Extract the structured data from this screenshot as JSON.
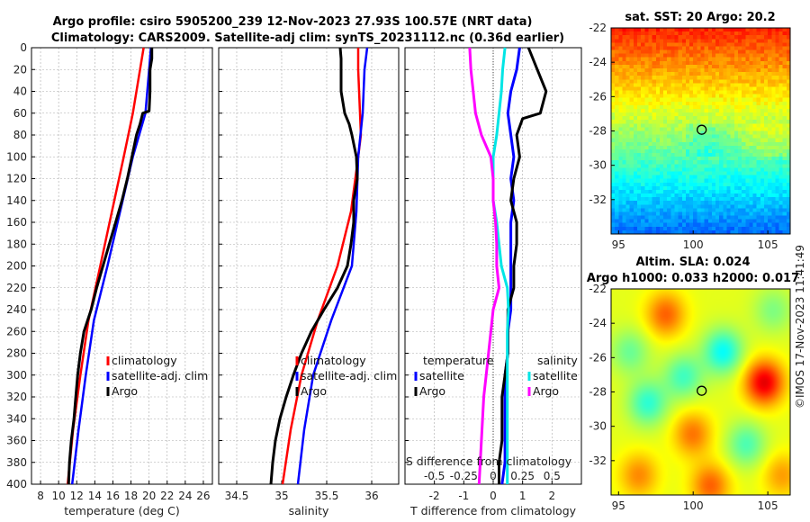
{
  "header": {
    "line1": "Argo profile: csiro 5905200_239 12-Nov-2023 27.93S 100.57E (NRT data)",
    "line2": "Climatology: CARS2009. Satellite-adj clim: synTS_20231112.nc (0.36d earlier)"
  },
  "colors": {
    "climatology": "#ff0000",
    "satellite": "#0000ff",
    "argo": "#000000",
    "s_satellite": "#00e5e5",
    "s_argo": "#ff00ff"
  },
  "chart_data": [
    {
      "type": "line",
      "id": "temperature",
      "xlabel": "temperature (deg C)",
      "ylabel": "",
      "xlim": [
        7,
        27
      ],
      "ylim": [
        400,
        0
      ],
      "xticks": [
        8,
        10,
        12,
        14,
        16,
        18,
        20,
        22,
        24,
        26
      ],
      "yticks": [
        0,
        20,
        40,
        60,
        80,
        100,
        120,
        140,
        160,
        180,
        200,
        220,
        240,
        260,
        280,
        300,
        320,
        340,
        360,
        380,
        400
      ],
      "grid": true,
      "legend": [
        "climatology",
        "satellite-adj. clim",
        "Argo"
      ],
      "series": [
        {
          "name": "climatology",
          "depth": [
            0,
            20,
            60,
            100,
            150,
            200,
            250,
            300,
            350,
            400
          ],
          "values": [
            19.4,
            19.0,
            18.2,
            17.2,
            15.9,
            14.6,
            13.3,
            12.4,
            11.6,
            11.0
          ]
        },
        {
          "name": "satellite-adj. clim",
          "depth": [
            0,
            20,
            60,
            100,
            150,
            200,
            250,
            300,
            350,
            400
          ],
          "values": [
            20.2,
            20.0,
            19.6,
            18.2,
            16.8,
            15.4,
            13.9,
            13.0,
            12.2,
            11.5
          ]
        },
        {
          "name": "Argo",
          "depth": [
            0,
            10,
            20,
            40,
            58,
            60,
            70,
            80,
            100,
            120,
            140,
            160,
            180,
            200,
            220,
            240,
            250,
            260,
            280,
            300,
            320,
            340,
            360,
            380,
            400
          ],
          "values": [
            20.3,
            20.3,
            20.1,
            20.1,
            20.0,
            19.3,
            19.0,
            18.6,
            18.1,
            17.6,
            17.0,
            16.3,
            15.6,
            14.9,
            14.2,
            13.6,
            13.2,
            12.8,
            12.4,
            12.1,
            11.9,
            11.7,
            11.4,
            11.2,
            11.1
          ]
        }
      ]
    },
    {
      "type": "line",
      "id": "salinity",
      "xlabel": "salinity",
      "ylabel": "",
      "xlim": [
        34.3,
        36.3
      ],
      "ylim": [
        400,
        0
      ],
      "xticks": [
        "34.5",
        "35",
        "35.5",
        "36"
      ],
      "xtick_values": [
        34.5,
        35,
        35.5,
        36
      ],
      "grid": true,
      "legend": [
        "climatology",
        "satellite-adj. clim",
        "Argo"
      ],
      "series": [
        {
          "name": "climatology",
          "depth": [
            0,
            20,
            60,
            80,
            100,
            150,
            200,
            250,
            300,
            350,
            400
          ],
          "values": [
            35.85,
            35.85,
            35.87,
            35.88,
            35.85,
            35.77,
            35.62,
            35.4,
            35.22,
            35.1,
            35.01
          ]
        },
        {
          "name": "satellite-adj. clim",
          "depth": [
            0,
            20,
            60,
            100,
            150,
            200,
            250,
            300,
            350,
            400
          ],
          "values": [
            35.95,
            35.92,
            35.9,
            35.85,
            35.83,
            35.78,
            35.55,
            35.35,
            35.25,
            35.18
          ]
        },
        {
          "name": "Argo",
          "depth": [
            0,
            10,
            20,
            40,
            60,
            70,
            80,
            100,
            120,
            140,
            160,
            180,
            200,
            220,
            240,
            260,
            280,
            300,
            320,
            340,
            360,
            380,
            400
          ],
          "values": [
            35.65,
            35.66,
            35.66,
            35.66,
            35.7,
            35.75,
            35.78,
            35.83,
            35.84,
            35.8,
            35.8,
            35.77,
            35.73,
            35.62,
            35.47,
            35.33,
            35.22,
            35.13,
            35.05,
            34.98,
            34.93,
            34.9,
            34.88
          ]
        }
      ]
    },
    {
      "type": "line",
      "id": "difference",
      "xlabel": "T difference from climatology",
      "top_xlabel": "S difference from climatology",
      "xlim": [
        -3,
        3
      ],
      "ylim": [
        400,
        0
      ],
      "xticks": [
        "-2",
        "-1",
        "0",
        "1",
        "2"
      ],
      "xtick_values": [
        -2,
        -1,
        0,
        1,
        2
      ],
      "s_xticks": [
        "-0.5",
        "-0.25",
        "0",
        "0.25",
        "0.5"
      ],
      "s_xtick_values": [
        -0.5,
        -0.25,
        0,
        0.25,
        0.5
      ],
      "s_scale": 4,
      "legend_headings": [
        "temperature",
        "salinity"
      ],
      "legend": [
        "satellite",
        "Argo",
        "satellite",
        "Argo"
      ],
      "series": [
        {
          "name": "satellite",
          "kind": "T",
          "depth": [
            0,
            20,
            40,
            60,
            80,
            100,
            120,
            140,
            160,
            180,
            200,
            220,
            240,
            260,
            280,
            300,
            320,
            340,
            360,
            380,
            400
          ],
          "values": [
            0.9,
            0.8,
            0.6,
            0.5,
            0.6,
            0.7,
            0.6,
            0.7,
            0.6,
            0.6,
            0.6,
            0.6,
            0.6,
            0.5,
            0.5,
            0.4,
            0.4,
            0.4,
            0.4,
            0.4,
            0.3
          ]
        },
        {
          "name": "Argo",
          "kind": "T",
          "depth": [
            0,
            20,
            40,
            60,
            65,
            80,
            100,
            120,
            140,
            160,
            180,
            200,
            220,
            240,
            260,
            280,
            300,
            320,
            340,
            360,
            380,
            400
          ],
          "values": [
            1.2,
            1.5,
            1.8,
            1.6,
            1.0,
            0.8,
            0.9,
            0.7,
            0.6,
            0.8,
            0.8,
            0.7,
            0.7,
            0.5,
            0.5,
            0.5,
            0.4,
            0.3,
            0.3,
            0.3,
            0.2,
            0.2
          ]
        },
        {
          "name": "satellite",
          "kind": "S",
          "depth": [
            0,
            20,
            40,
            60,
            80,
            100,
            120,
            140,
            160,
            180,
            200,
            220,
            240,
            260,
            280,
            300,
            320,
            340,
            360,
            380,
            400
          ],
          "values": [
            0.1,
            0.08,
            0.07,
            0.05,
            0.03,
            0.0,
            0.0,
            0.0,
            0.03,
            0.05,
            0.07,
            0.12,
            0.13,
            0.12,
            0.12,
            0.12,
            0.12,
            0.12,
            0.12,
            0.12,
            0.12
          ]
        },
        {
          "name": "Argo",
          "kind": "S",
          "depth": [
            0,
            20,
            40,
            60,
            80,
            100,
            120,
            140,
            160,
            180,
            200,
            220,
            240,
            260,
            280,
            300,
            320,
            340,
            360,
            380,
            400
          ],
          "values": [
            -0.2,
            -0.19,
            -0.17,
            -0.15,
            -0.1,
            -0.02,
            0.0,
            0.0,
            0.02,
            0.03,
            0.03,
            0.05,
            0.0,
            -0.02,
            -0.04,
            -0.06,
            -0.08,
            -0.09,
            -0.1,
            -0.11,
            -0.12
          ]
        }
      ]
    }
  ],
  "maps": {
    "sst": {
      "title": "sat. SST: 20 Argo: 20.2",
      "yticks": [
        "-22",
        "-24",
        "-26",
        "-28",
        "-30",
        "-32"
      ],
      "ytick_values": [
        -22,
        -24,
        -26,
        -28,
        -30,
        -32
      ],
      "xticks": [
        "95",
        "100",
        "105"
      ],
      "xtick_values": [
        95,
        100,
        105
      ],
      "lon_range": [
        94.5,
        106.5
      ],
      "lat_range": [
        -34,
        -22
      ],
      "marker": {
        "lon": 100.57,
        "lat": -27.93
      }
    },
    "sla": {
      "title1": "Altim. SLA: 0.024",
      "title2": "Argo h1000: 0.033 h2000: 0.017",
      "yticks": [
        "-22",
        "-24",
        "-26",
        "-28",
        "-30",
        "-32"
      ],
      "ytick_values": [
        -22,
        -24,
        -26,
        -28,
        -30,
        -32
      ],
      "xticks": [
        "95",
        "100",
        "105"
      ],
      "xtick_values": [
        95,
        100,
        105
      ],
      "lon_range": [
        94.5,
        106.5
      ],
      "lat_range": [
        -34,
        -22
      ],
      "marker": {
        "lon": 100.57,
        "lat": -27.93
      }
    }
  },
  "credit": "©IMOS 17-Nov-2023 11:41:49"
}
